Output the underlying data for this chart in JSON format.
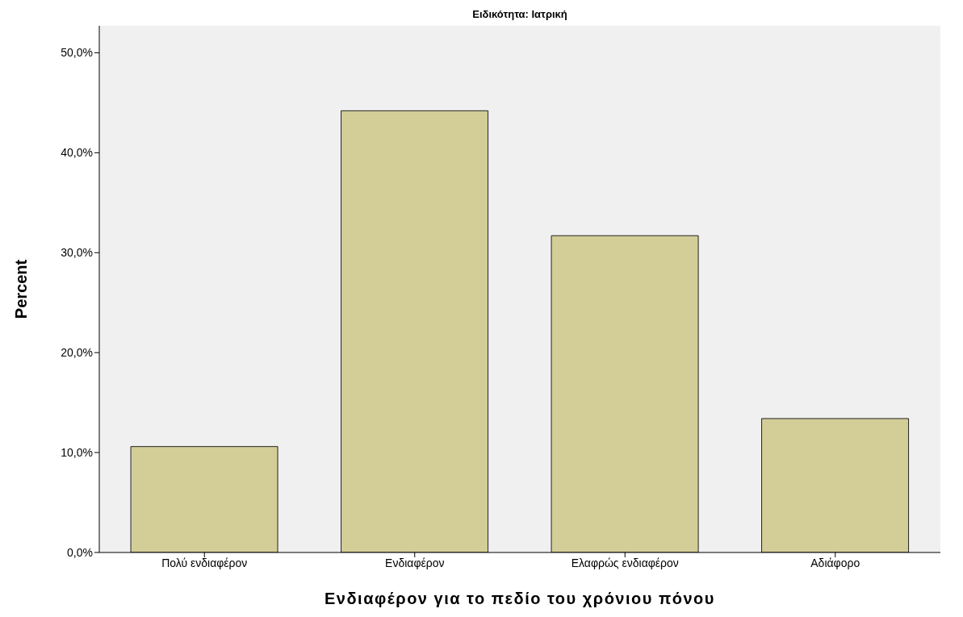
{
  "chart_data": {
    "type": "bar",
    "title": "Ειδικότητα: Ιατρική",
    "xlabel": "Ενδιαφέρον για το πεδίο του χρόνιου πόνου",
    "ylabel": "Percent",
    "categories": [
      "Πολύ ενδιαφέρον",
      "Ενδιαφέρον",
      "Ελαφρώς ενδιαφέρον",
      "Αδιάφορο"
    ],
    "values": [
      10.6,
      44.2,
      31.7,
      13.4
    ],
    "color": "#d3ce97",
    "ylim": [
      0,
      52.7
    ],
    "yticks": [
      {
        "value": 0,
        "label": "0,0%"
      },
      {
        "value": 10,
        "label": "10,0%"
      },
      {
        "value": 20,
        "label": "20,0%"
      },
      {
        "value": 30,
        "label": "30,0%"
      },
      {
        "value": 40,
        "label": "40,0%"
      },
      {
        "value": 50,
        "label": "50,0%"
      }
    ],
    "grid": false,
    "legend": false
  }
}
